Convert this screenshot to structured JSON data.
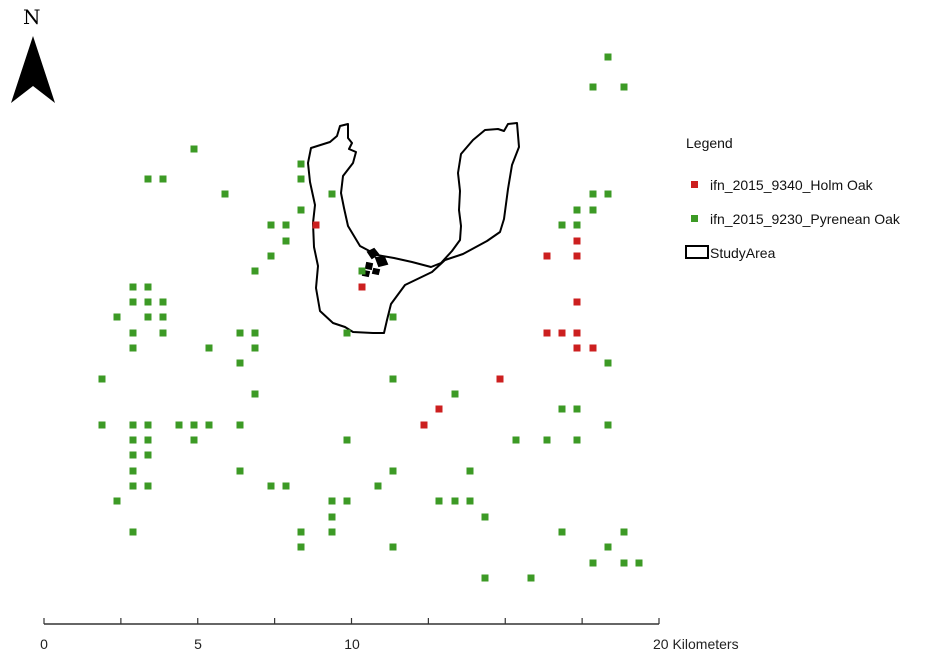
{
  "north_arrow": {
    "label": "N",
    "icon": "north-arrow-icon"
  },
  "legend": {
    "title": "Legend",
    "items": [
      {
        "label": "ifn_2015_9340_Holm Oak",
        "color": "#cc1f1f",
        "symbol": "square"
      },
      {
        "label": "ifn_2015_9230_Pyrenean Oak",
        "color": "#3c9a25",
        "symbol": "square"
      },
      {
        "label": "StudyArea",
        "color": "#000000",
        "symbol": "outline-rect"
      }
    ]
  },
  "scale_bar": {
    "labels": [
      "0",
      "5",
      "10",
      "20 Kilometers"
    ],
    "max_km": 20,
    "tick_km": [
      0,
      2.5,
      5,
      7.5,
      10,
      12.5,
      15,
      17.5,
      20
    ]
  },
  "plot_points": {
    "holm_oak": [
      [
        316,
        225
      ],
      [
        362,
        287
      ],
      [
        547,
        256
      ],
      [
        577,
        241
      ],
      [
        577,
        256
      ],
      [
        577,
        302
      ],
      [
        547,
        333
      ],
      [
        562,
        333
      ],
      [
        577,
        333
      ],
      [
        577,
        348
      ],
      [
        593,
        348
      ],
      [
        500,
        379
      ],
      [
        439,
        409
      ],
      [
        424,
        425
      ]
    ],
    "pyrenean_oak": [
      [
        608,
        57
      ],
      [
        593,
        87
      ],
      [
        624,
        87
      ],
      [
        194,
        149
      ],
      [
        301,
        164
      ],
      [
        148,
        179
      ],
      [
        163,
        179
      ],
      [
        301,
        179
      ],
      [
        225,
        194
      ],
      [
        332,
        194
      ],
      [
        593,
        194
      ],
      [
        608,
        194
      ],
      [
        301,
        210
      ],
      [
        577,
        210
      ],
      [
        593,
        210
      ],
      [
        271,
        225
      ],
      [
        286,
        225
      ],
      [
        562,
        225
      ],
      [
        577,
        225
      ],
      [
        286,
        241
      ],
      [
        271,
        256
      ],
      [
        255,
        271
      ],
      [
        362,
        271
      ],
      [
        133,
        287
      ],
      [
        148,
        287
      ],
      [
        133,
        302
      ],
      [
        148,
        302
      ],
      [
        163,
        302
      ],
      [
        117,
        317
      ],
      [
        148,
        317
      ],
      [
        163,
        317
      ],
      [
        393,
        317
      ],
      [
        133,
        333
      ],
      [
        163,
        333
      ],
      [
        240,
        333
      ],
      [
        255,
        333
      ],
      [
        347,
        333
      ],
      [
        133,
        348
      ],
      [
        209,
        348
      ],
      [
        255,
        348
      ],
      [
        240,
        363
      ],
      [
        608,
        363
      ],
      [
        102,
        379
      ],
      [
        393,
        379
      ],
      [
        255,
        394
      ],
      [
        455,
        394
      ],
      [
        562,
        409
      ],
      [
        577,
        409
      ],
      [
        102,
        425
      ],
      [
        133,
        425
      ],
      [
        148,
        425
      ],
      [
        179,
        425
      ],
      [
        194,
        425
      ],
      [
        209,
        425
      ],
      [
        240,
        425
      ],
      [
        608,
        425
      ],
      [
        133,
        440
      ],
      [
        148,
        440
      ],
      [
        194,
        440
      ],
      [
        347,
        440
      ],
      [
        516,
        440
      ],
      [
        547,
        440
      ],
      [
        577,
        440
      ],
      [
        133,
        455
      ],
      [
        148,
        455
      ],
      [
        133,
        471
      ],
      [
        240,
        471
      ],
      [
        393,
        471
      ],
      [
        470,
        471
      ],
      [
        133,
        486
      ],
      [
        148,
        486
      ],
      [
        271,
        486
      ],
      [
        286,
        486
      ],
      [
        378,
        486
      ],
      [
        117,
        501
      ],
      [
        332,
        501
      ],
      [
        347,
        501
      ],
      [
        439,
        501
      ],
      [
        455,
        501
      ],
      [
        470,
        501
      ],
      [
        332,
        517
      ],
      [
        485,
        517
      ],
      [
        133,
        532
      ],
      [
        301,
        532
      ],
      [
        332,
        532
      ],
      [
        562,
        532
      ],
      [
        624,
        532
      ],
      [
        301,
        547
      ],
      [
        393,
        547
      ],
      [
        608,
        547
      ],
      [
        593,
        563
      ],
      [
        624,
        563
      ],
      [
        639,
        563
      ],
      [
        485,
        578
      ],
      [
        531,
        578
      ]
    ]
  }
}
